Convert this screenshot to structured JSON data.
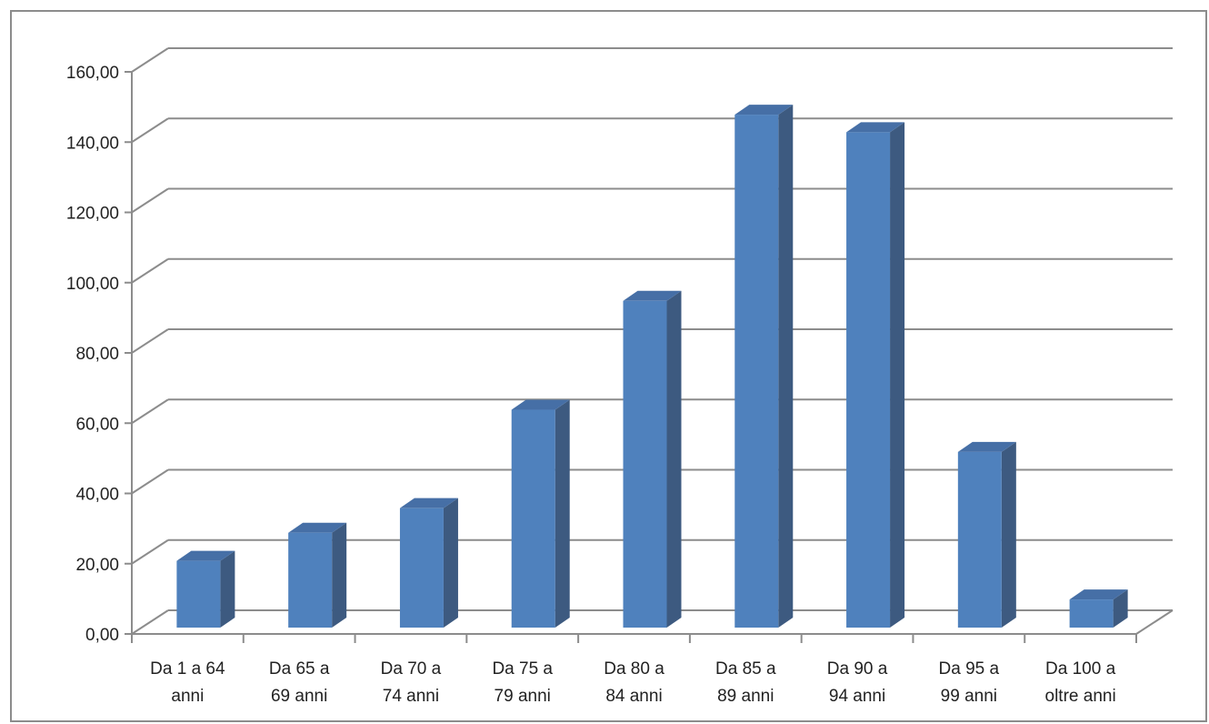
{
  "chart_data": {
    "type": "bar",
    "style": "3d-column",
    "title": "",
    "xlabel": "",
    "ylabel": "",
    "categories": [
      [
        "Da  1 a 64",
        "anni"
      ],
      [
        "Da 65 a",
        "69 anni"
      ],
      [
        "Da 70 a",
        "74 anni"
      ],
      [
        "Da 75 a",
        "79 anni"
      ],
      [
        "Da 80 a",
        "84 anni"
      ],
      [
        "Da 85 a",
        "89 anni"
      ],
      [
        "Da 90 a",
        "94 anni"
      ],
      [
        "Da 95 a",
        "99 anni"
      ],
      [
        "Da 100 a",
        "oltre anni"
      ]
    ],
    "values": [
      19,
      27,
      34,
      62,
      93,
      146,
      141,
      50,
      8
    ],
    "ylim": [
      0,
      160
    ],
    "yticks": [
      "0,00",
      "20,00",
      "40,00",
      "60,00",
      "80,00",
      "100,00",
      "120,00",
      "140,00",
      "160,00"
    ],
    "grid": true,
    "legend": "none",
    "colors": {
      "bar_front": "#4f81bd",
      "bar_side": "#3d5a80",
      "bar_top": "#466fa6",
      "grid": "#8c8c8c",
      "axis": "#8c8c8c"
    }
  }
}
